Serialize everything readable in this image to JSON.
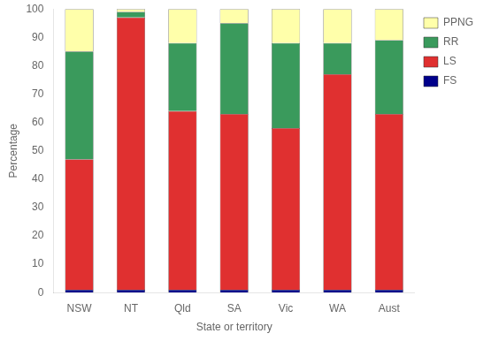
{
  "chart_data": {
    "type": "bar",
    "stacked": true,
    "xlabel": "State or territory",
    "ylabel": "Percentage",
    "categories": [
      "NSW",
      "NT",
      "Qld",
      "SA",
      "Vic",
      "WA",
      "Aust"
    ],
    "series": [
      {
        "name": "FS",
        "color": "#00008B",
        "values": [
          1,
          1,
          1,
          1,
          1,
          1,
          1
        ]
      },
      {
        "name": "LS",
        "color": "#e03030",
        "values": [
          46,
          96,
          63,
          62,
          57,
          76,
          62
        ]
      },
      {
        "name": "RR",
        "color": "#3a9a5c",
        "values": [
          38,
          2,
          24,
          32,
          30,
          11,
          26
        ]
      },
      {
        "name": "PPNG",
        "color": "#ffffaa",
        "values": [
          15,
          1,
          12,
          5,
          12,
          12,
          11
        ]
      }
    ],
    "ylim": [
      0,
      100
    ],
    "yticks": [
      0,
      10,
      20,
      30,
      40,
      50,
      60,
      70,
      80,
      90,
      100
    ],
    "grid": false,
    "legend": "right"
  }
}
